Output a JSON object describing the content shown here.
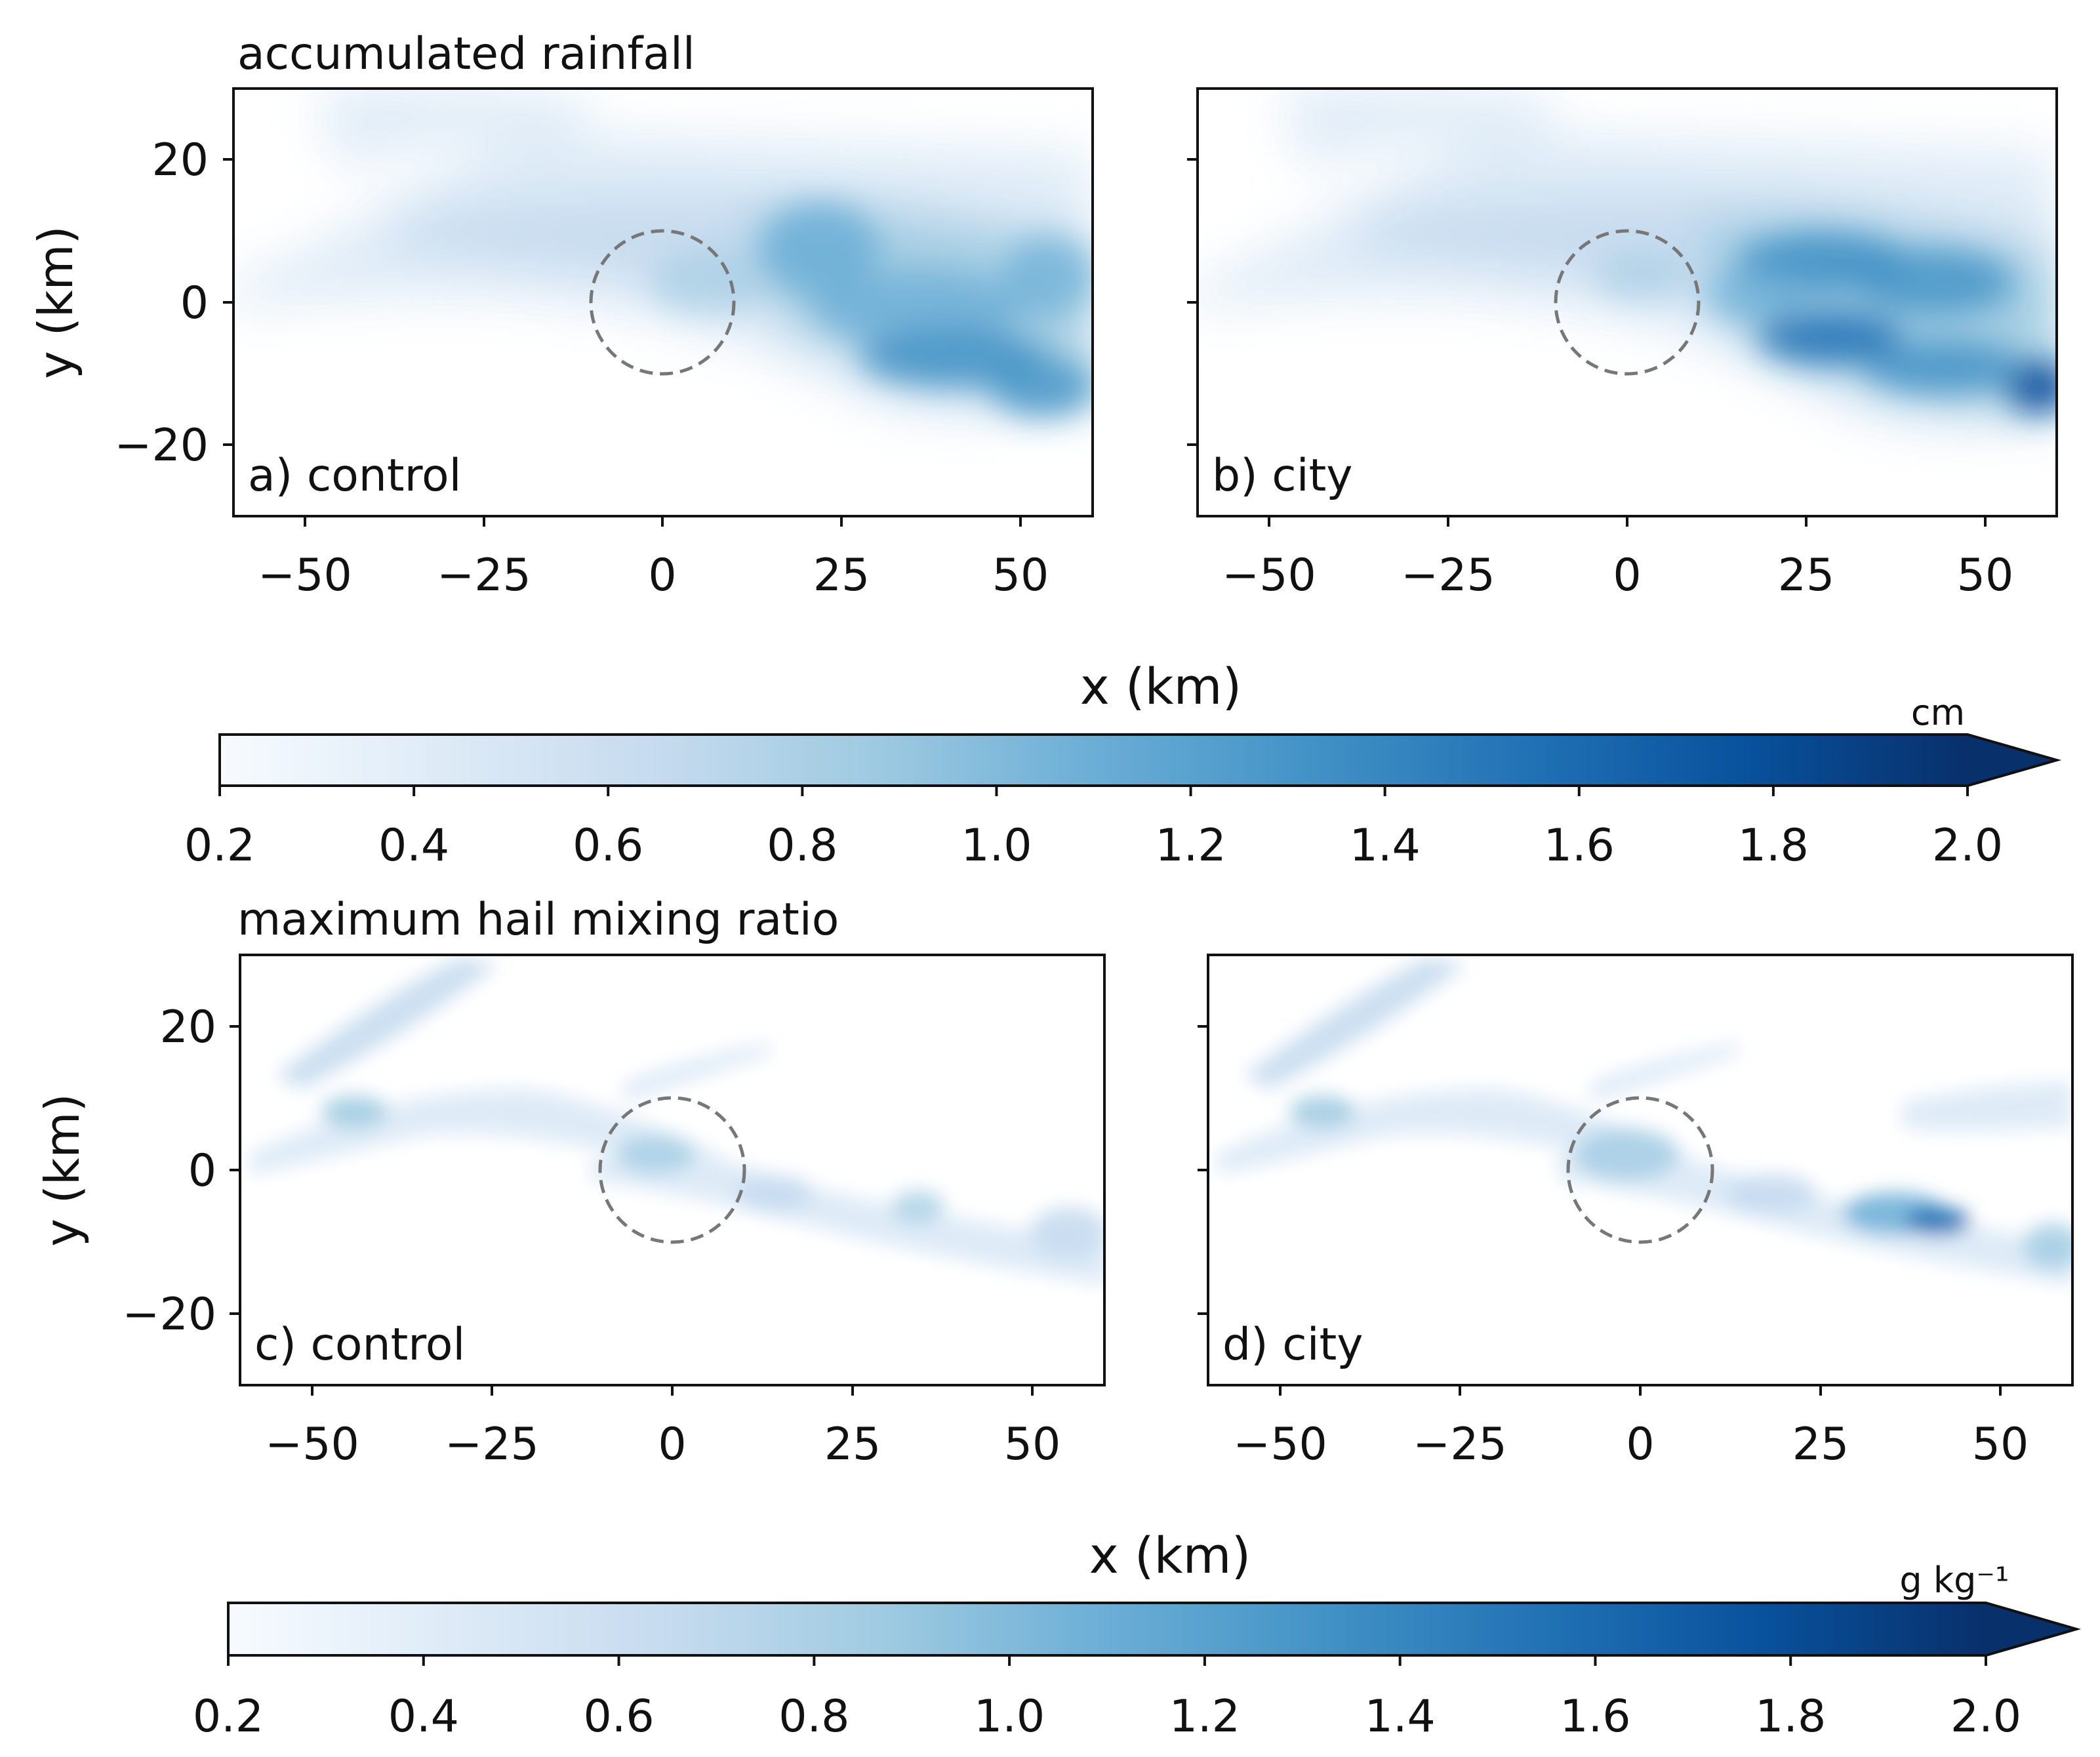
{
  "figure": {
    "top_title": "accumulated rainfall",
    "bottom_title": "maximum hail mixing ratio"
  },
  "colors": {
    "cmap": [
      "#f7fbff",
      "#deebf7",
      "#c6dbef",
      "#9ecae1",
      "#6baed6",
      "#4292c6",
      "#2171b5",
      "#08519c",
      "#08306b"
    ],
    "circle": "#777777",
    "axis": "#111111"
  },
  "chart_data": [
    {
      "type": "heatmap",
      "panel": "a",
      "label": "a) control",
      "xlabel": "",
      "ylabel": "y (km)",
      "xlim": [
        -60,
        60
      ],
      "ylim": [
        -30,
        30
      ],
      "xticks": [
        -50,
        -25,
        0,
        25,
        50
      ],
      "xtick_labels": [
        "−50",
        "−25",
        "0",
        "25",
        "50"
      ],
      "yticks": [
        -20,
        0,
        20
      ],
      "ytick_labels": [
        "−20",
        "0",
        "20"
      ],
      "city_circle": {
        "cx": 0,
        "cy": 0,
        "r": 10
      },
      "field_features": [
        {
          "x": -60,
          "y": 3,
          "value": 0.3
        },
        {
          "x": -40,
          "y": 22,
          "value": 0.5
        },
        {
          "x": -20,
          "y": 9,
          "value": 0.75
        },
        {
          "x": 0,
          "y": 4,
          "value": 0.8
        },
        {
          "x": 20,
          "y": 7,
          "value": 1.05
        },
        {
          "x": 35,
          "y": 0,
          "value": 1.2
        },
        {
          "x": 35,
          "y": -8,
          "value": 1.45
        },
        {
          "x": 55,
          "y": -12,
          "value": 1.3
        }
      ]
    },
    {
      "type": "heatmap",
      "panel": "b",
      "label": "b) city",
      "xlabel": "",
      "ylabel": "",
      "xlim": [
        -60,
        60
      ],
      "ylim": [
        -30,
        30
      ],
      "xticks": [
        -50,
        -25,
        0,
        25,
        50
      ],
      "xtick_labels": [
        "−50",
        "−25",
        "0",
        "25",
        "50"
      ],
      "yticks": [
        -20,
        0,
        20
      ],
      "ytick_labels": [
        "",
        "",
        ""
      ],
      "city_circle": {
        "cx": 0,
        "cy": 0,
        "r": 10
      },
      "field_features": [
        {
          "x": -60,
          "y": 3,
          "value": 0.3
        },
        {
          "x": -40,
          "y": 22,
          "value": 0.5
        },
        {
          "x": -20,
          "y": 9,
          "value": 0.75
        },
        {
          "x": 0,
          "y": 2,
          "value": 0.75
        },
        {
          "x": 30,
          "y": 5,
          "value": 1.4
        },
        {
          "x": 25,
          "y": -5,
          "value": 1.6
        },
        {
          "x": 40,
          "y": -8,
          "value": 1.5
        },
        {
          "x": 58,
          "y": -12,
          "value": 1.9
        }
      ]
    },
    {
      "type": "heatmap",
      "panel": "c",
      "label": "c) control",
      "xlabel": "",
      "ylabel": "y (km)",
      "xlim": [
        -60,
        60
      ],
      "ylim": [
        -30,
        30
      ],
      "xticks": [
        -50,
        -25,
        0,
        25,
        50
      ],
      "xtick_labels": [
        "−50",
        "−25",
        "0",
        "25",
        "50"
      ],
      "yticks": [
        -20,
        0,
        20
      ],
      "ytick_labels": [
        "−20",
        "0",
        "20"
      ],
      "city_circle": {
        "cx": 0,
        "cy": 0,
        "r": 10
      },
      "field_features": [
        {
          "x": -45,
          "y": 23,
          "value": 0.5
        },
        {
          "x": -45,
          "y": 8,
          "value": 0.55
        },
        {
          "x": 0,
          "y": 3,
          "value": 0.55
        },
        {
          "x": 15,
          "y": -2,
          "value": 0.6
        },
        {
          "x": 35,
          "y": -5,
          "value": 0.65
        },
        {
          "x": 55,
          "y": -10,
          "value": 0.5
        }
      ]
    },
    {
      "type": "heatmap",
      "panel": "d",
      "label": "d) city",
      "xlabel": "",
      "ylabel": "",
      "xlim": [
        -60,
        60
      ],
      "ylim": [
        -30,
        30
      ],
      "xticks": [
        -50,
        -25,
        0,
        25,
        50
      ],
      "xtick_labels": [
        "−50",
        "−25",
        "0",
        "25",
        "50"
      ],
      "yticks": [
        -20,
        0,
        20
      ],
      "ytick_labels": [
        "",
        "",
        ""
      ],
      "city_circle": {
        "cx": 0,
        "cy": 0,
        "r": 10
      },
      "field_features": [
        {
          "x": -45,
          "y": 23,
          "value": 0.5
        },
        {
          "x": -45,
          "y": 8,
          "value": 0.55
        },
        {
          "x": 0,
          "y": 4,
          "value": 0.7
        },
        {
          "x": 20,
          "y": -3,
          "value": 0.6
        },
        {
          "x": 43,
          "y": -7,
          "value": 1.6
        },
        {
          "x": 58,
          "y": -12,
          "value": 0.7
        }
      ]
    }
  ],
  "shared_xlabels": [
    "x (km)",
    "x (km)"
  ],
  "colorbars": [
    {
      "unit": "cm",
      "vmin": 0.2,
      "vmax": 2.0,
      "ticks": [
        "0.2",
        "0.4",
        "0.6",
        "0.8",
        "1.0",
        "1.2",
        "1.4",
        "1.6",
        "1.8",
        "2.0"
      ],
      "extend": "max"
    },
    {
      "unit": "g kg⁻¹",
      "vmin": 0.2,
      "vmax": 2.0,
      "ticks": [
        "0.2",
        "0.4",
        "0.6",
        "0.8",
        "1.0",
        "1.2",
        "1.4",
        "1.6",
        "1.8",
        "2.0"
      ],
      "extend": "max"
    }
  ]
}
